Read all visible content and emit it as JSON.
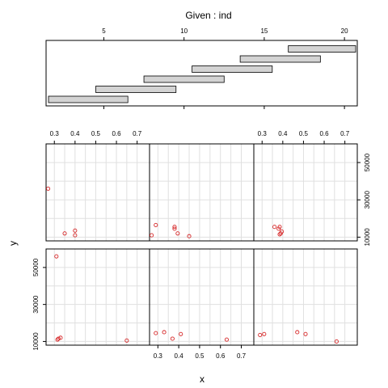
{
  "chart_data": {
    "type": "scatter",
    "title": "Given : ind",
    "xlabel": "x",
    "ylabel": "y",
    "given": {
      "xlim": [
        1.4,
        20.8
      ],
      "ticks": [
        5,
        10,
        15,
        20
      ],
      "intervals": [
        [
          1.5,
          6.5
        ],
        [
          4.5,
          9.5
        ],
        [
          7.5,
          12.5
        ],
        [
          10.5,
          15.5
        ],
        [
          13.5,
          18.5
        ],
        [
          16.5,
          21.5
        ]
      ]
    },
    "x_ticks": [
      0.3,
      0.4,
      0.5,
      0.6,
      0.7
    ],
    "xlim": [
      0.26,
      0.76
    ],
    "y_ticks": [
      10000,
      30000,
      50000
    ],
    "ylim": [
      8000,
      60000
    ],
    "panels": [
      {
        "points": [
          {
            "x": 0.31,
            "y": 56000
          },
          {
            "x": 0.315,
            "y": 11000
          },
          {
            "x": 0.32,
            "y": 11500
          },
          {
            "x": 0.33,
            "y": 12000
          },
          {
            "x": 0.65,
            "y": 10500
          }
        ]
      },
      {
        "points": [
          {
            "x": 0.29,
            "y": 14500
          },
          {
            "x": 0.33,
            "y": 15000
          },
          {
            "x": 0.37,
            "y": 11500
          },
          {
            "x": 0.41,
            "y": 14000
          },
          {
            "x": 0.63,
            "y": 11000
          }
        ]
      },
      {
        "points": [
          {
            "x": 0.29,
            "y": 13500
          },
          {
            "x": 0.31,
            "y": 14000
          },
          {
            "x": 0.47,
            "y": 15000
          },
          {
            "x": 0.51,
            "y": 14000
          },
          {
            "x": 0.66,
            "y": 10000
          }
        ]
      },
      {
        "points": [
          {
            "x": 0.27,
            "y": 36000
          },
          {
            "x": 0.35,
            "y": 12000
          },
          {
            "x": 0.4,
            "y": 13500
          },
          {
            "x": 0.4,
            "y": 11000
          }
        ]
      },
      {
        "points": [
          {
            "x": 0.27,
            "y": 11000
          },
          {
            "x": 0.29,
            "y": 16500
          },
          {
            "x": 0.38,
            "y": 14500
          },
          {
            "x": 0.38,
            "y": 15500
          },
          {
            "x": 0.395,
            "y": 12000
          },
          {
            "x": 0.45,
            "y": 10500
          }
        ]
      },
      {
        "points": [
          {
            "x": 0.36,
            "y": 15500
          },
          {
            "x": 0.38,
            "y": 14500
          },
          {
            "x": 0.385,
            "y": 15500
          },
          {
            "x": 0.39,
            "y": 12000
          },
          {
            "x": 0.395,
            "y": 13000
          },
          {
            "x": 0.385,
            "y": 11500
          }
        ]
      }
    ]
  }
}
